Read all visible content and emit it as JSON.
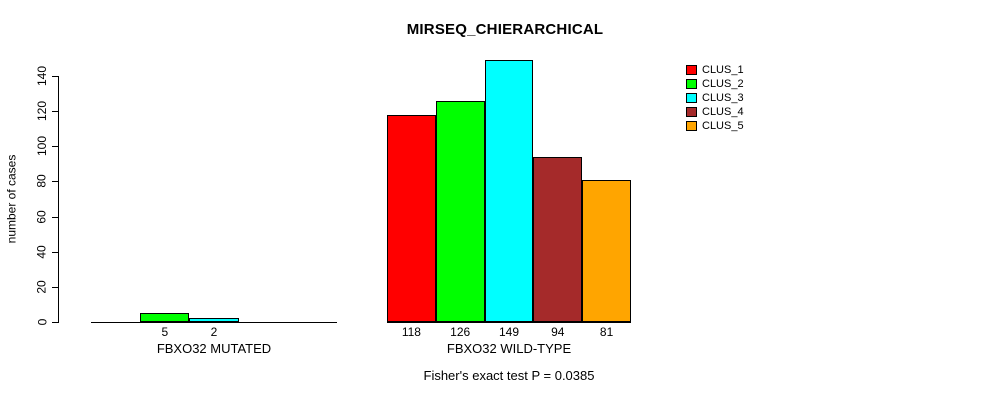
{
  "chart_data": {
    "type": "bar",
    "title": "MIRSEQ_CHIERARCHICAL",
    "ylabel": "number of cases",
    "xlabel": "",
    "ylim": [
      0,
      150
    ],
    "yticks": [
      0,
      20,
      40,
      60,
      80,
      100,
      120,
      140
    ],
    "grid": false,
    "legend_position": "top-right",
    "categories": [
      "FBXO32 MUTATED",
      "FBXO32 WILD-TYPE"
    ],
    "series": [
      {
        "name": "CLUS_1",
        "color": "#FF0000",
        "values": [
          0,
          118
        ]
      },
      {
        "name": "CLUS_2",
        "color": "#00FF00",
        "values": [
          5,
          126
        ]
      },
      {
        "name": "CLUS_3",
        "color": "#00FFFF",
        "values": [
          2,
          149
        ]
      },
      {
        "name": "CLUS_4",
        "color": "#A52A2A",
        "values": [
          0,
          94
        ]
      },
      {
        "name": "CLUS_5",
        "color": "#FFA500",
        "values": [
          0,
          81
        ]
      }
    ],
    "value_labels_shown_for_zero": false,
    "footnote": "Fisher's exact test P = 0.0385",
    "axis_color": "#000000",
    "bar_border_color": "#000000"
  }
}
